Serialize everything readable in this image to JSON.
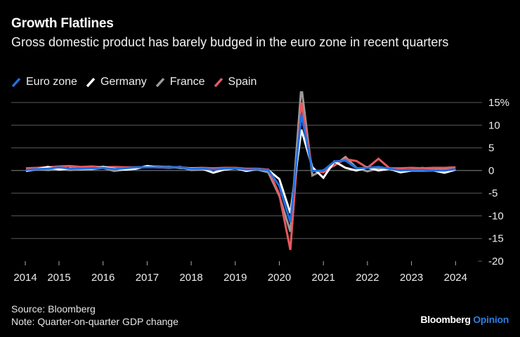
{
  "header": {
    "title": "Growth Flatlines",
    "subtitle": "Gross domestic product has barely budged in the euro zone in recent quarters"
  },
  "footer": {
    "source": "Source: Bloomberg",
    "note": "Note: Quarter-on-quarter GDP change"
  },
  "brand": {
    "name": "Bloomberg",
    "suffix": "Opinion",
    "suffix_color": "#2f7de1"
  },
  "chart_data": {
    "type": "line",
    "title": "Growth Flatlines",
    "subtitle": "Gross domestic product has barely budged in the euro zone in recent quarters",
    "xlabel": "",
    "ylabel": "Quarter-on-quarter GDP change (%)",
    "ylim": [
      -20,
      15
    ],
    "y_ticks": [
      15,
      10,
      5,
      0,
      -5,
      -10,
      -15,
      -20
    ],
    "y_tick_labels": [
      "15%",
      "10",
      "5",
      "0",
      "-5",
      "-10",
      "-15",
      "-20"
    ],
    "x_tick_labels": [
      "2014",
      "2015",
      "2016",
      "2017",
      "2018",
      "2019",
      "2020",
      "2021",
      "2022",
      "2023",
      "2024"
    ],
    "grid": true,
    "legend_position": "top-left",
    "x": [
      "2014Q2",
      "2014Q3",
      "2014Q4",
      "2015Q1",
      "2015Q2",
      "2015Q3",
      "2015Q4",
      "2016Q1",
      "2016Q2",
      "2016Q3",
      "2016Q4",
      "2017Q1",
      "2017Q2",
      "2017Q3",
      "2017Q4",
      "2018Q1",
      "2018Q2",
      "2018Q3",
      "2018Q4",
      "2019Q1",
      "2019Q2",
      "2019Q3",
      "2019Q4",
      "2020Q1",
      "2020Q2",
      "2020Q3",
      "2020Q4",
      "2021Q1",
      "2021Q2",
      "2021Q3",
      "2021Q4",
      "2022Q1",
      "2022Q2",
      "2022Q3",
      "2022Q4",
      "2023Q1",
      "2023Q2",
      "2023Q3",
      "2023Q4",
      "2024Q1"
    ],
    "series": [
      {
        "name": "France",
        "color": "#9a9a9a",
        "values": [
          0.0,
          0.3,
          0.1,
          0.4,
          0.1,
          0.3,
          0.3,
          0.6,
          -0.1,
          0.2,
          0.6,
          0.8,
          0.7,
          0.6,
          0.8,
          0.1,
          0.2,
          0.4,
          0.5,
          0.6,
          0.3,
          0.2,
          -0.4,
          -5.6,
          -13.5,
          18.6,
          -1.1,
          0.1,
          1.1,
          3.0,
          0.6,
          -0.2,
          0.5,
          0.4,
          0.0,
          0.1,
          0.6,
          0.1,
          0.4,
          0.2
        ]
      },
      {
        "name": "Spain",
        "color": "#e8585e",
        "values": [
          0.5,
          0.6,
          0.7,
          0.9,
          1.0,
          0.8,
          0.9,
          0.7,
          0.8,
          0.7,
          0.7,
          0.8,
          0.9,
          0.7,
          0.7,
          0.5,
          0.6,
          0.5,
          0.6,
          0.6,
          0.4,
          0.4,
          0.2,
          -5.3,
          -17.5,
          15.0,
          0.0,
          -0.4,
          1.2,
          2.5,
          2.1,
          0.6,
          2.6,
          0.5,
          0.5,
          0.6,
          0.5,
          0.6,
          0.6,
          0.7
        ]
      },
      {
        "name": "Germany",
        "color": "#ffffff",
        "values": [
          -0.1,
          0.3,
          0.8,
          0.2,
          0.5,
          0.3,
          0.4,
          0.8,
          0.4,
          0.2,
          0.4,
          1.0,
          0.7,
          0.8,
          0.6,
          0.5,
          0.4,
          -0.5,
          0.2,
          0.5,
          -0.1,
          0.3,
          0.1,
          -1.9,
          -9.4,
          9.0,
          0.7,
          -1.6,
          2.0,
          0.6,
          0.0,
          0.7,
          0.0,
          0.4,
          -0.4,
          0.0,
          0.0,
          0.0,
          -0.5,
          0.2
        ]
      },
      {
        "name": "Euro zone",
        "color": "#1f6fe5",
        "values": [
          0.1,
          0.3,
          0.4,
          0.7,
          0.4,
          0.4,
          0.5,
          0.6,
          0.3,
          0.5,
          0.7,
          0.7,
          0.7,
          0.7,
          0.7,
          0.4,
          0.4,
          0.2,
          0.4,
          0.5,
          0.2,
          0.3,
          0.1,
          -3.4,
          -11.4,
          12.4,
          -0.1,
          0.0,
          2.0,
          2.2,
          0.5,
          0.6,
          0.8,
          0.4,
          0.0,
          0.1,
          0.1,
          0.0,
          0.0,
          0.3
        ]
      }
    ]
  }
}
